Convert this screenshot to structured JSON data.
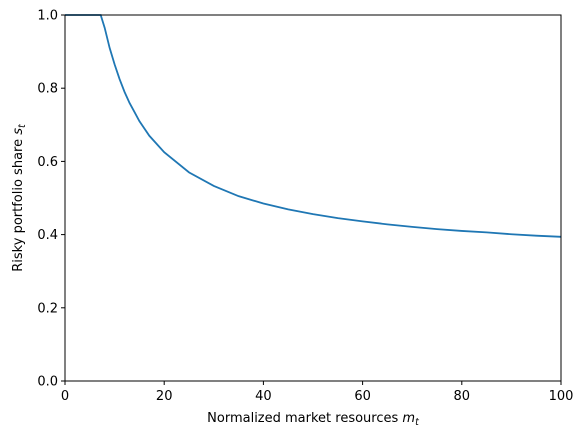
{
  "chart_data": {
    "type": "line",
    "title": "",
    "xlabel": {
      "text": "Normalized market resources ",
      "var": "m",
      "sub": "t"
    },
    "ylabel": {
      "text": "Risky portfolio share ",
      "var": "s",
      "sub": "t"
    },
    "xlim": [
      0,
      100
    ],
    "ylim": [
      0,
      1.0
    ],
    "xticks": [
      "0",
      "20",
      "40",
      "60",
      "80",
      "100"
    ],
    "yticks": [
      "0.0",
      "0.2",
      "0.4",
      "0.6",
      "0.8",
      "1.0"
    ],
    "xtick_values": [
      0,
      20,
      40,
      60,
      80,
      100
    ],
    "ytick_values": [
      0,
      0.2,
      0.4,
      0.6,
      0.8,
      1.0
    ],
    "grid": false,
    "legend": "none",
    "series": [
      {
        "color": "#1f77b4",
        "x": [
          0,
          2,
          4,
          6,
          7.2,
          8,
          9,
          10,
          11,
          12,
          13,
          14,
          15,
          17,
          20,
          25,
          30,
          35,
          40,
          45,
          50,
          55,
          60,
          65,
          70,
          75,
          80,
          85,
          90,
          95,
          100
        ],
        "y": [
          1.0,
          1.0,
          1.0,
          1.0,
          1.0,
          0.965,
          0.91,
          0.865,
          0.825,
          0.79,
          0.76,
          0.735,
          0.71,
          0.67,
          0.625,
          0.57,
          0.533,
          0.505,
          0.485,
          0.469,
          0.456,
          0.445,
          0.436,
          0.428,
          0.421,
          0.415,
          0.41,
          0.406,
          0.401,
          0.397,
          0.394
        ]
      }
    ]
  }
}
